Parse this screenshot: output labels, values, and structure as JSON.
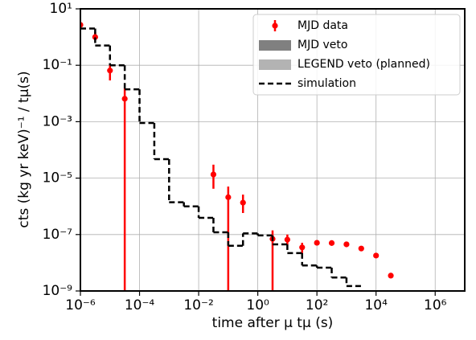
{
  "chart_data": {
    "type": "scatter",
    "xlabel": "time after μ  tμ (s)",
    "ylabel": "cts (kg yr keV)⁻¹ / tμ(s)",
    "xscale": "log",
    "yscale": "log",
    "grid": true,
    "legend": "upper right",
    "xlim": [
      1e-06,
      10000000.0
    ],
    "xticks": [
      {
        "value": 1e-06,
        "label": "10⁻⁶"
      },
      {
        "value": 0.0001,
        "label": "10⁻⁴"
      },
      {
        "value": 0.01,
        "label": "10⁻²"
      },
      {
        "value": 1,
        "label": "10⁰"
      },
      {
        "value": 100,
        "label": "10²"
      },
      {
        "value": 10000,
        "label": "10⁴"
      },
      {
        "value": 1000000,
        "label": "10⁶"
      }
    ],
    "ylim": [
      1e-09,
      10
    ],
    "yticks": [
      {
        "value": 1e-09,
        "label": "10⁻⁹"
      },
      {
        "value": 1e-07,
        "label": "10⁻⁷"
      },
      {
        "value": 1e-05,
        "label": "10⁻⁵"
      },
      {
        "value": 0.001,
        "label": "10⁻³"
      },
      {
        "value": 0.1,
        "label": "10⁻¹"
      },
      {
        "value": 10,
        "label": "10¹"
      }
    ],
    "series": [
      {
        "name": "MJD data",
        "color": "#ff0000",
        "kind": "errorbar",
        "x": [
          1e-06,
          3.16e-06,
          1e-05,
          3.16e-05,
          0.0316,
          0.1,
          0.316,
          3.16,
          10,
          31.6,
          100,
          316,
          1000,
          3160,
          10000,
          31600
        ],
        "values": [
          2.7,
          1.0,
          0.065,
          0.0065,
          1.35e-05,
          2.1e-06,
          1.35e-06,
          7e-08,
          6.6e-08,
          3.5e-08,
          5.1e-08,
          5e-08,
          4.5e-08,
          3.2e-08,
          1.8e-08,
          3.5e-09
        ],
        "err_low": [
          null,
          0.77,
          0.029,
          0,
          4.2e-06,
          0,
          5.8e-07,
          0,
          4.5e-08,
          2.2e-08,
          null,
          null,
          null,
          null,
          null,
          null
        ],
        "err_high": [
          null,
          1.5,
          0.11,
          0.015,
          3e-05,
          5e-06,
          2.6e-06,
          1.4e-07,
          1e-07,
          5.1e-08,
          null,
          null,
          null,
          null,
          null,
          null
        ]
      },
      {
        "name": "MJD veto",
        "color": "#808080",
        "kind": "band"
      },
      {
        "name": "LEGEND veto (planned)",
        "color": "#b3b3b3",
        "kind": "band"
      },
      {
        "name": "simulation",
        "color": "#000000",
        "kind": "step",
        "bins": [
          1e-06,
          3.16e-06,
          1e-05,
          3.16e-05,
          0.0001,
          0.000316,
          0.001,
          0.00316,
          0.01,
          0.0316,
          0.1,
          0.316,
          1,
          3.16,
          10,
          31.6,
          100,
          316,
          1000,
          3160
        ],
        "values": [
          2,
          0.5,
          0.1,
          0.014,
          0.0009,
          4.7e-05,
          1.4e-06,
          1e-06,
          3.9e-07,
          1.2e-07,
          4e-08,
          1.1e-07,
          9.3e-08,
          4.5e-08,
          2.2e-08,
          8e-09,
          6.7e-09,
          3e-09,
          1.5e-09
        ]
      }
    ]
  }
}
